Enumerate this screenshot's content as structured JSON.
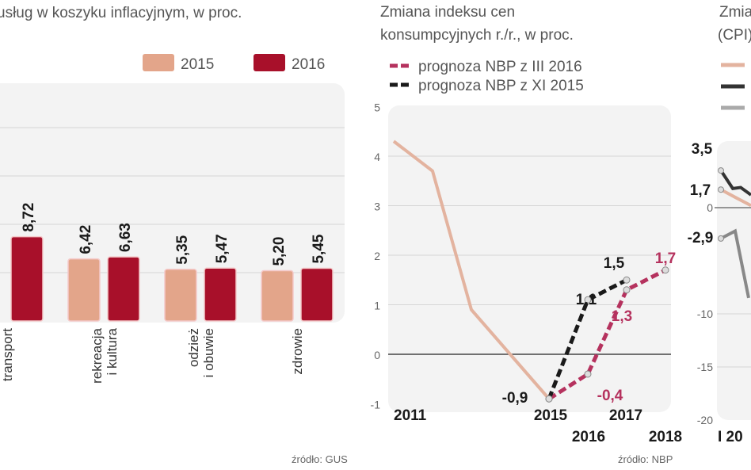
{
  "chart_data": [
    {
      "type": "bar",
      "title": "usług w koszyku inflacyjnym, w proc.",
      "categories": [
        "transport",
        "rekreacja\ni kultura",
        "odzież\ni obuwie",
        "zdrowie"
      ],
      "series": [
        {
          "name": "2015",
          "color": "#e3a58a",
          "values": [
            null,
            6.42,
            5.35,
            5.2
          ]
        },
        {
          "name": "2016",
          "color": "#a8102a",
          "values": [
            8.72,
            6.63,
            5.47,
            5.45
          ]
        }
      ],
      "value_labels": {
        "2015": [
          null,
          "6,42",
          "5,35",
          "5,20"
        ],
        "2016": [
          "8,72",
          "6,63",
          "5,47",
          "5,45"
        ]
      },
      "grid": true,
      "legend": "top-right",
      "source": "źródło: GUS"
    },
    {
      "type": "line",
      "title": "Zmiana indeksu cen",
      "subtitle": "konsumpcyjnych r./r., w proc.",
      "x": [
        2011,
        2012,
        2013,
        2014,
        2015,
        2016,
        2017,
        2018
      ],
      "x_tick_labels": [
        "2011",
        "2015",
        "2016",
        "2017",
        "2018"
      ],
      "ylim": [
        -1,
        5
      ],
      "y_ticks": [
        -1,
        0,
        1,
        2,
        3,
        4,
        5
      ],
      "series": [
        {
          "color": "#e3b39f",
          "style": "solid",
          "x": [
            2011,
            2012,
            2013,
            2014,
            2015
          ],
          "values": [
            4.3,
            3.7,
            0.9,
            0.0,
            -0.9
          ]
        },
        {
          "name": "prognoza NBP z III 2016",
          "color": "#b5325e",
          "style": "dashed",
          "x": [
            2015,
            2016,
            2017,
            2018
          ],
          "values": [
            -0.9,
            -0.4,
            1.3,
            1.7
          ],
          "labels": [
            "",
            "-0,4",
            "1,3",
            "1,7"
          ]
        },
        {
          "name": "prognoza NBP z XI 2015",
          "color": "#1a1a1a",
          "style": "dashed",
          "x": [
            2015,
            2016,
            2017
          ],
          "values": [
            -0.9,
            1.1,
            1.5
          ],
          "labels": [
            "-0,9",
            "1,1",
            "1,5"
          ]
        }
      ],
      "grid": true,
      "legend": "top-left",
      "source": "źródło: NBP"
    },
    {
      "type": "line",
      "title": "Zmia",
      "subtitle": "(CPI)",
      "ylim": [
        -20,
        5
      ],
      "y_ticks": [
        "0",
        "-10",
        "-15",
        "-20"
      ],
      "x_tick_labels": [
        "I 20"
      ],
      "legend_colors": [
        "#e3b39f",
        "#333333",
        "#aaaaaa"
      ],
      "series": [
        {
          "color": "#e3b39f",
          "values": [
            1.7,
            0.9,
            0.2
          ],
          "labels": [
            "1,7"
          ]
        },
        {
          "color": "#333333",
          "values": [
            3.5,
            1.8,
            1.9,
            1.2
          ],
          "labels": [
            "3,5"
          ]
        },
        {
          "color": "#888888",
          "values": [
            -2.9,
            -2.2,
            -8.5
          ],
          "labels": [
            "-2,9"
          ]
        }
      ]
    }
  ]
}
